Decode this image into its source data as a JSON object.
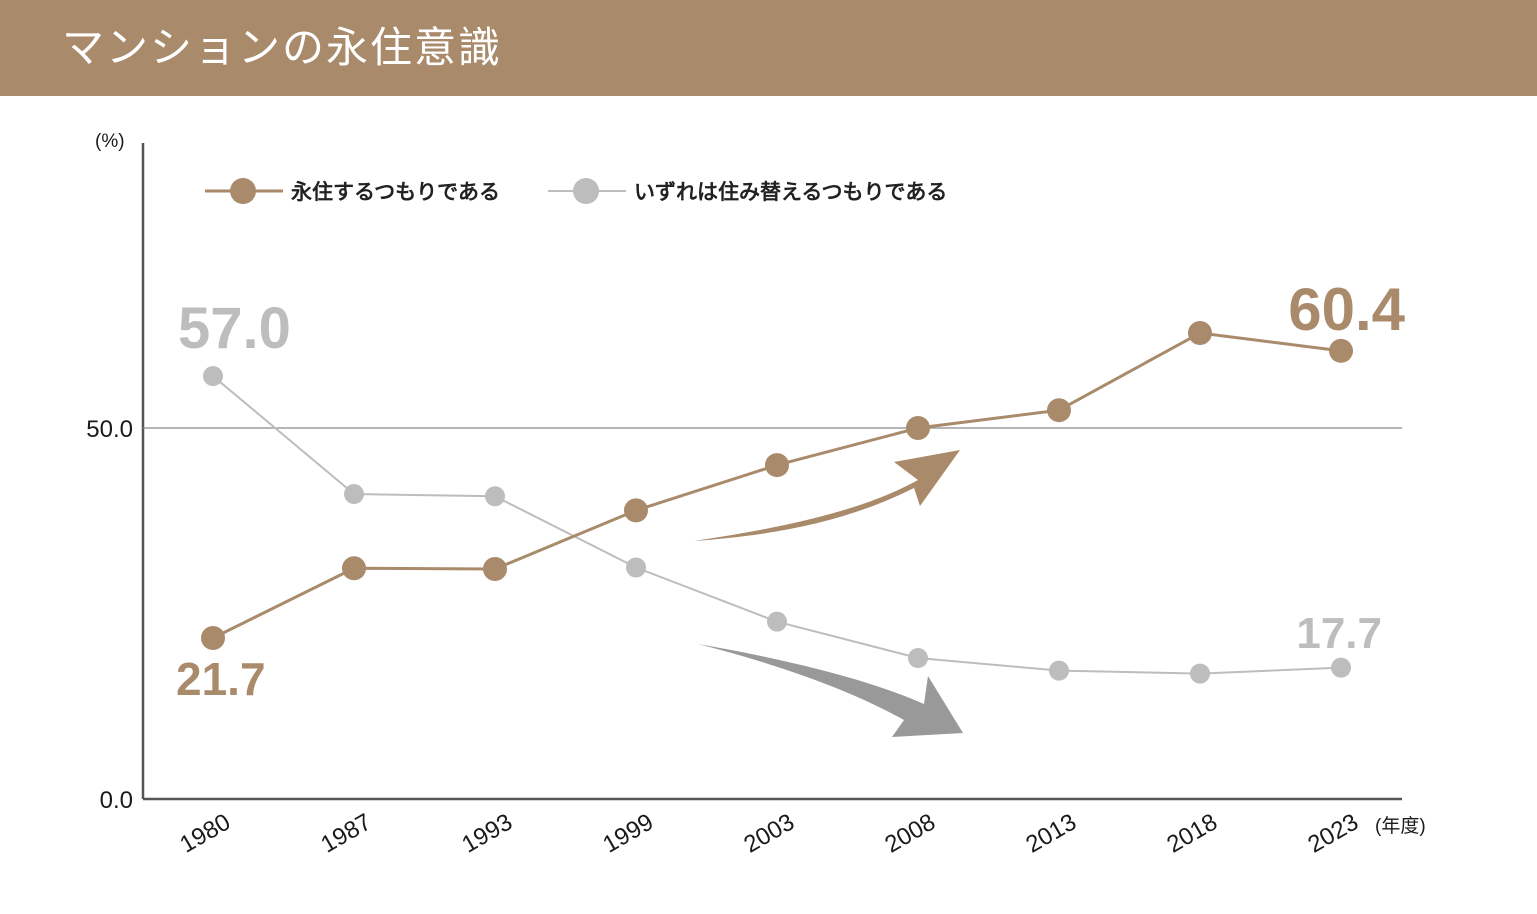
{
  "header": {
    "title": "マンションの永住意識"
  },
  "chart_data": {
    "type": "line",
    "title": "マンションの永住意識",
    "y_unit": "(%)",
    "x_unit": "(年度)",
    "x": [
      "1980",
      "1987",
      "1993",
      "1999",
      "2003",
      "2008",
      "2013",
      "2018",
      "2023"
    ],
    "ylim": [
      0,
      66
    ],
    "yticks": [
      "0.0",
      "50.0"
    ],
    "reference_line": 50,
    "legend_position": "top-left",
    "series": [
      {
        "name": "永住するつもりである",
        "color": "#a98a6b",
        "values": [
          21.7,
          31.1,
          31.0,
          38.9,
          45.0,
          50.0,
          52.4,
          62.8,
          60.4
        ]
      },
      {
        "name": "いずれは住み替えるつもりである",
        "color": "#bdbdbd",
        "values": [
          57.0,
          41.1,
          40.8,
          31.2,
          23.9,
          19.0,
          17.3,
          16.9,
          17.7
        ]
      }
    ],
    "annotations": [
      {
        "series": 0,
        "point": "first",
        "text": "21.7"
      },
      {
        "series": 0,
        "point": "last",
        "text": "60.4"
      },
      {
        "series": 1,
        "point": "first",
        "text": "57.0"
      },
      {
        "series": 1,
        "point": "last",
        "text": "17.7"
      }
    ],
    "trend_arrows": [
      {
        "direction": "up",
        "color": "#a98a6b"
      },
      {
        "direction": "down",
        "color": "#999999"
      }
    ]
  }
}
